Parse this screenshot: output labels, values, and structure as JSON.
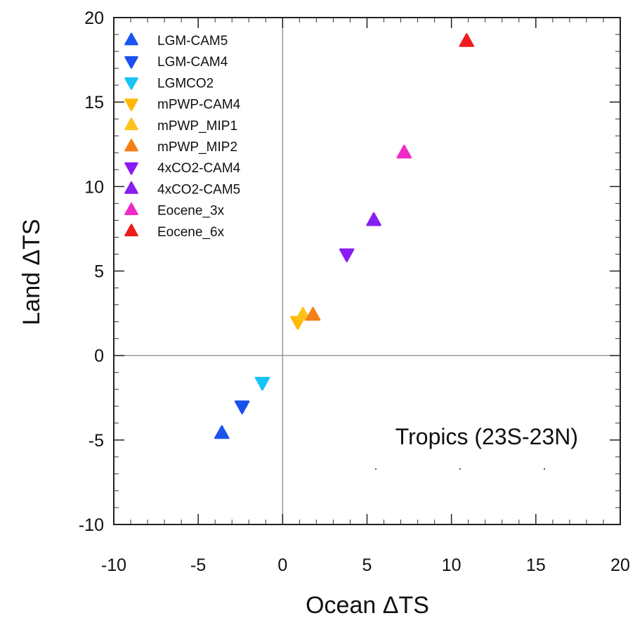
{
  "chart_data": {
    "type": "scatter",
    "xlabel": "Ocean ΔTS",
    "ylabel": "Land ΔTS",
    "xlim": [
      -10,
      20
    ],
    "ylim": [
      -10,
      20
    ],
    "xticks": [
      -10,
      -5,
      0,
      5,
      10,
      15,
      20
    ],
    "yticks": [
      -10,
      -5,
      0,
      5,
      10,
      15,
      20
    ],
    "xtick_labels": [
      "-10",
      "-5",
      "0",
      "5",
      "10",
      "15",
      "20"
    ],
    "ytick_labels": [
      "-10",
      "-5",
      "0",
      "5",
      "10",
      "15",
      "20"
    ],
    "zero_lines": true,
    "grid": false,
    "legend_position": "top-left",
    "annotation": "Tropics (23S-23N)",
    "series": [
      {
        "name": "LGM-CAM5",
        "marker": "triangle-up",
        "color": "#1a55f0",
        "x": -3.6,
        "y": -4.6
      },
      {
        "name": "LGM-CAM4",
        "marker": "triangle-down",
        "color": "#1a4ff0",
        "x": -2.4,
        "y": -3.0
      },
      {
        "name": "LGMCO2",
        "marker": "triangle-down",
        "color": "#19c3f5",
        "x": -1.2,
        "y": -1.6
      },
      {
        "name": "mPWP-CAM4",
        "marker": "triangle-down",
        "color": "#ffb800",
        "x": 0.9,
        "y": 2.0
      },
      {
        "name": "mPWP_MIP1",
        "marker": "triangle-up",
        "color": "#ffc21a",
        "x": 1.2,
        "y": 2.4
      },
      {
        "name": "mPWP_MIP2",
        "marker": "triangle-up",
        "color": "#f57f17",
        "x": 1.8,
        "y": 2.4
      },
      {
        "name": "4xCO2-CAM4",
        "marker": "triangle-down",
        "color": "#8a1bf5",
        "x": 3.8,
        "y": 6.0
      },
      {
        "name": "4xCO2-CAM5",
        "marker": "triangle-up",
        "color": "#8620f0",
        "x": 5.4,
        "y": 8.0
      },
      {
        "name": "Eocene_3x",
        "marker": "triangle-up",
        "color": "#ee2bc7",
        "x": 7.2,
        "y": 12.0
      },
      {
        "name": "Eocene_6x",
        "marker": "triangle-up",
        "color": "#ee1c1c",
        "x": 10.9,
        "y": 18.6
      }
    ]
  }
}
